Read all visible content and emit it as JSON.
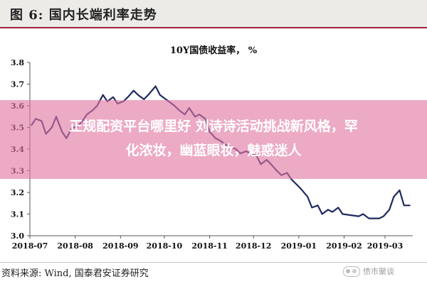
{
  "figure": {
    "title": "图 6:  国内长端利率走势",
    "source": "资料来源:  Wind,  国泰君安证券研究",
    "watermark": "债市聚谈"
  },
  "overlay": {
    "line1": "正规配资平台哪里好 刘诗诗活动挑战新风格，罕",
    "line2": "化浓妆，幽蓝眼妆，魅惑迷人"
  },
  "chart_data": {
    "type": "line",
    "title": "10Y国债收益率，  %",
    "xlabel": "",
    "ylabel": "",
    "x_ticks": [
      "2018-07",
      "2018-08",
      "2018-09",
      "2018-10",
      "2018-11",
      "2018-12",
      "2019-01",
      "2019-02",
      "2019-03"
    ],
    "y_ticks": [
      "3.0",
      "3.1",
      "3.2",
      "3.3",
      "3.4",
      "3.5",
      "3.6",
      "3.7",
      "3.8"
    ],
    "xlim": [
      "2018-07-01",
      "2019-03-20"
    ],
    "ylim": [
      3.0,
      3.8
    ],
    "grid": false,
    "color": "#1f2a60",
    "series": [
      {
        "x": [
          "2018-07-02",
          "2018-07-05",
          "2018-07-09",
          "2018-07-12",
          "2018-07-16",
          "2018-07-19",
          "2018-07-23",
          "2018-07-26",
          "2018-07-30",
          "2018-08-02",
          "2018-08-06",
          "2018-08-09",
          "2018-08-13",
          "2018-08-16",
          "2018-08-20",
          "2018-08-23",
          "2018-08-27",
          "2018-08-30",
          "2018-09-03",
          "2018-09-06",
          "2018-09-10",
          "2018-09-13",
          "2018-09-17",
          "2018-09-20",
          "2018-09-25",
          "2018-09-28",
          "2018-10-08",
          "2018-10-11",
          "2018-10-15",
          "2018-10-18",
          "2018-10-22",
          "2018-10-25",
          "2018-10-29",
          "2018-11-01",
          "2018-11-05",
          "2018-11-08",
          "2018-11-12",
          "2018-11-15",
          "2018-11-19",
          "2018-11-22",
          "2018-11-26",
          "2018-11-29",
          "2018-12-03",
          "2018-12-06",
          "2018-12-10",
          "2018-12-13",
          "2018-12-17",
          "2018-12-20",
          "2018-12-24",
          "2018-12-27",
          "2019-01-02",
          "2019-01-07",
          "2019-01-10",
          "2019-01-14",
          "2019-01-17",
          "2019-01-21",
          "2019-01-24",
          "2019-01-28",
          "2019-01-31",
          "2019-02-11",
          "2019-02-14",
          "2019-02-18",
          "2019-02-21",
          "2019-02-25",
          "2019-02-28",
          "2019-03-04",
          "2019-03-07",
          "2019-03-11",
          "2019-03-14",
          "2019-03-18"
        ],
        "values": [
          3.51,
          3.54,
          3.53,
          3.47,
          3.5,
          3.55,
          3.48,
          3.45,
          3.5,
          3.5,
          3.53,
          3.56,
          3.58,
          3.6,
          3.65,
          3.62,
          3.64,
          3.61,
          3.62,
          3.64,
          3.67,
          3.65,
          3.63,
          3.65,
          3.69,
          3.65,
          3.6,
          3.58,
          3.56,
          3.59,
          3.55,
          3.56,
          3.54,
          3.48,
          3.45,
          3.44,
          3.42,
          3.41,
          3.4,
          3.38,
          3.39,
          3.38,
          3.37,
          3.33,
          3.35,
          3.33,
          3.3,
          3.28,
          3.29,
          3.26,
          3.22,
          3.18,
          3.13,
          3.14,
          3.1,
          3.12,
          3.11,
          3.13,
          3.1,
          3.09,
          3.1,
          3.08,
          3.08,
          3.08,
          3.09,
          3.12,
          3.18,
          3.21,
          3.14,
          3.14
        ]
      }
    ]
  }
}
